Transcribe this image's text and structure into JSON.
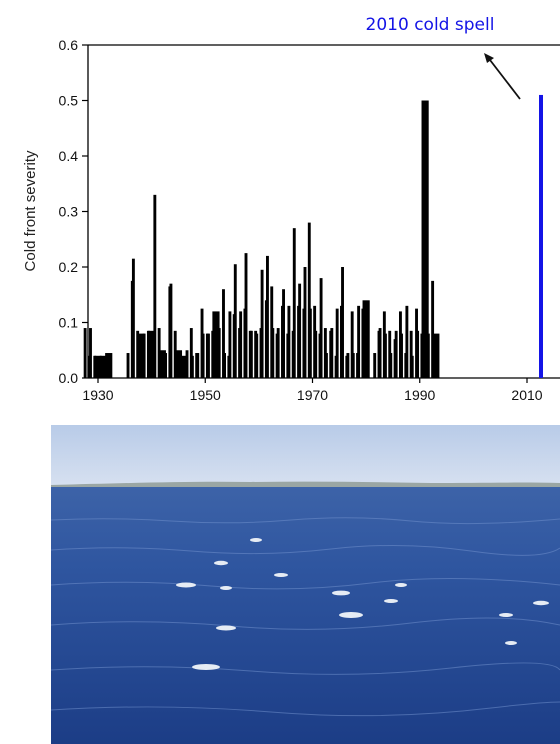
{
  "chart_data": {
    "type": "bar",
    "title": "",
    "xlabel": "",
    "ylabel": "Cold front severity",
    "xlim": [
      1927,
      2016
    ],
    "ylim": [
      0,
      0.6
    ],
    "xticks": [
      1930,
      1950,
      1970,
      1990,
      2010
    ],
    "yticks": [
      "0.0",
      "0.1",
      "0.2",
      "0.3",
      "0.4",
      "0.5",
      "0.6"
    ],
    "grid": false,
    "bar_color": "#000000",
    "highlight_color": "#1414e6",
    "annotation": {
      "text": "2010 cold spell",
      "year": 2010,
      "color": "#1414e6"
    },
    "series": [
      {
        "year": 1928,
        "values": [
          0.09,
          0.04
        ]
      },
      {
        "year": 1929,
        "values": [
          0.09,
          0.04
        ]
      },
      {
        "year": 1930,
        "values": [
          0.04
        ]
      },
      {
        "year": 1931,
        "values": [
          0.04
        ]
      },
      {
        "year": 1932,
        "values": [
          0.045
        ]
      },
      {
        "year": 1936,
        "values": [
          0.045,
          0.175
        ]
      },
      {
        "year": 1937,
        "values": [
          0.215,
          0.085
        ]
      },
      {
        "year": 1938,
        "values": [
          0.08
        ]
      },
      {
        "year": 1939,
        "values": [
          0.08,
          0.085
        ]
      },
      {
        "year": 1940,
        "values": [
          0.085
        ]
      },
      {
        "year": 1941,
        "values": [
          0.33,
          0.09
        ]
      },
      {
        "year": 1942,
        "values": [
          0.05
        ]
      },
      {
        "year": 1943,
        "values": [
          0.045,
          0.165
        ]
      },
      {
        "year": 1944,
        "values": [
          0.17,
          0.085
        ]
      },
      {
        "year": 1945,
        "values": [
          0.05
        ]
      },
      {
        "year": 1946,
        "values": [
          0.04
        ]
      },
      {
        "year": 1947,
        "values": [
          0.05,
          0.09
        ]
      },
      {
        "year": 1948,
        "values": [
          0.04,
          0.045
        ]
      },
      {
        "year": 1949,
        "values": [
          0.045,
          0.125
        ]
      },
      {
        "year": 1950,
        "values": [
          0.08,
          0.08
        ]
      },
      {
        "year": 1951,
        "values": [
          0.08,
          0.085
        ]
      },
      {
        "year": 1952,
        "values": [
          0.12
        ]
      },
      {
        "year": 1953,
        "values": [
          0.09,
          0.16
        ]
      },
      {
        "year": 1954,
        "values": [
          0.045,
          0.04
        ]
      },
      {
        "year": 1955,
        "values": [
          0.12,
          0.115
        ]
      },
      {
        "year": 1956,
        "values": [
          0.205,
          0.09
        ]
      },
      {
        "year": 1957,
        "values": [
          0.12,
          0.125
        ]
      },
      {
        "year": 1958,
        "values": [
          0.225,
          0.085
        ]
      },
      {
        "year": 1959,
        "values": [
          0.085,
          0.085
        ]
      },
      {
        "year": 1960,
        "values": [
          0.08,
          0.09
        ]
      },
      {
        "year": 1961,
        "values": [
          0.195,
          0.14
        ]
      },
      {
        "year": 1962,
        "values": [
          0.22,
          0.165
        ]
      },
      {
        "year": 1963,
        "values": [
          0.09,
          0.08
        ]
      },
      {
        "year": 1964,
        "values": [
          0.09,
          0.13
        ]
      },
      {
        "year": 1965,
        "values": [
          0.16,
          0.08
        ]
      },
      {
        "year": 1966,
        "values": [
          0.13,
          0.085
        ]
      },
      {
        "year": 1967,
        "values": [
          0.27,
          0.13
        ]
      },
      {
        "year": 1968,
        "values": [
          0.17,
          0.125
        ]
      },
      {
        "year": 1969,
        "values": [
          0.2,
          0.28
        ]
      },
      {
        "year": 1970,
        "values": [
          0.125,
          0.13
        ]
      },
      {
        "year": 1971,
        "values": [
          0.085,
          0.08
        ]
      },
      {
        "year": 1972,
        "values": [
          0.18,
          0.09
        ]
      },
      {
        "year": 1973,
        "values": [
          0.045,
          0.085
        ]
      },
      {
        "year": 1974,
        "values": [
          0.09,
          0.04
        ]
      },
      {
        "year": 1975,
        "values": [
          0.125,
          0.13
        ]
      },
      {
        "year": 1976,
        "values": [
          0.2,
          0.04
        ]
      },
      {
        "year": 1977,
        "values": [
          0.045,
          0.12
        ]
      },
      {
        "year": 1978,
        "values": [
          0.045,
          0.045
        ]
      },
      {
        "year": 1979,
        "values": [
          0.13,
          0.125
        ]
      },
      {
        "year": 1980,
        "values": [
          0.14
        ]
      },
      {
        "year": 1982,
        "values": [
          0.045,
          0.085
        ]
      },
      {
        "year": 1983,
        "values": [
          0.09,
          0.12
        ]
      },
      {
        "year": 1984,
        "values": [
          0.08,
          0.085
        ]
      },
      {
        "year": 1985,
        "values": [
          0.045,
          0.07
        ]
      },
      {
        "year": 1986,
        "values": [
          0.085,
          0.12
        ]
      },
      {
        "year": 1987,
        "values": [
          0.08,
          0.045
        ]
      },
      {
        "year": 1988,
        "values": [
          0.13,
          0.085
        ]
      },
      {
        "year": 1989,
        "values": [
          0.04,
          0.125
        ]
      },
      {
        "year": 1990,
        "values": [
          0.085,
          0.08
        ]
      },
      {
        "year": 1991,
        "values": [
          0.5
        ]
      },
      {
        "year": 1992,
        "values": [
          0.08,
          0.175
        ]
      },
      {
        "year": 1993,
        "values": [
          0.08
        ]
      }
    ]
  }
}
